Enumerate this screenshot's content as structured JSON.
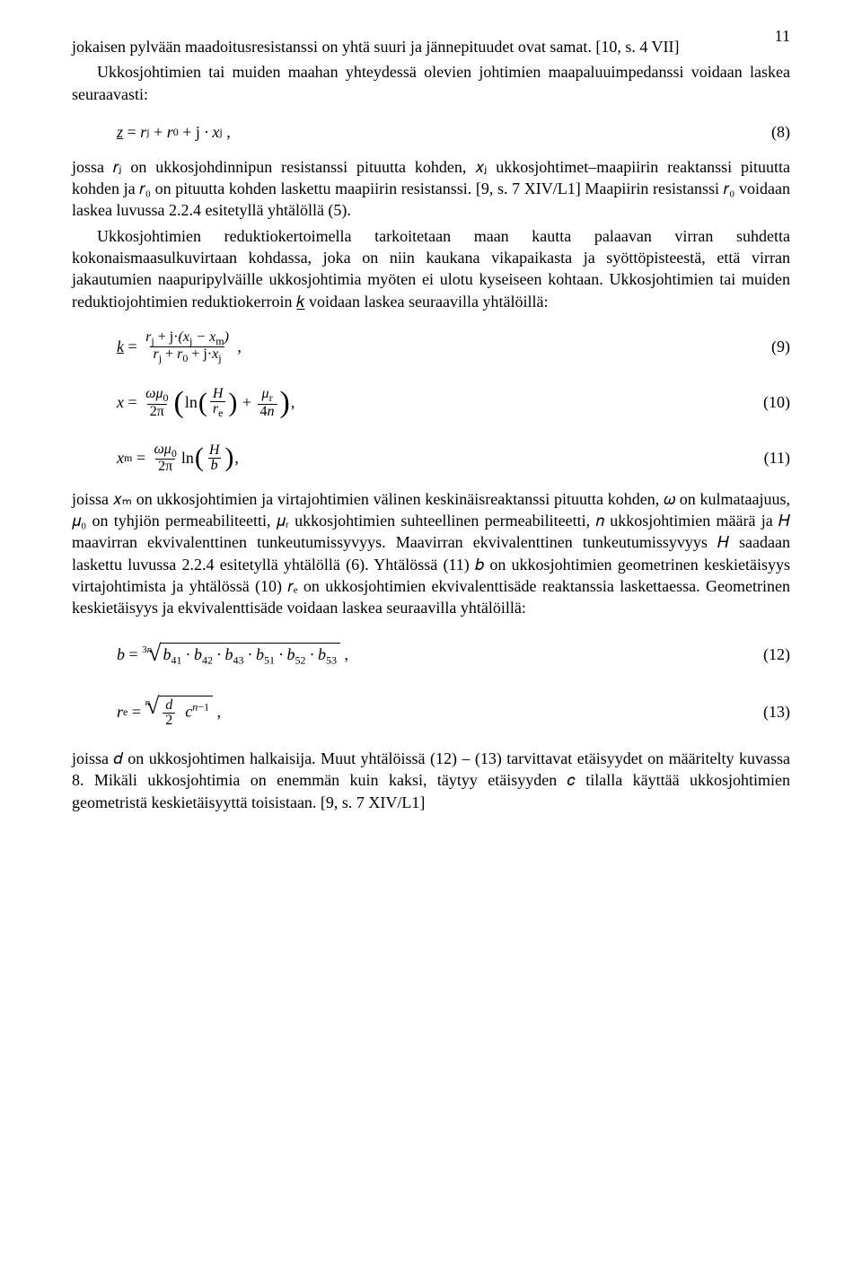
{
  "page_number": "11",
  "p1a": "jokaisen pylvään maadoitusresistanssi on yhtä suuri ja jännepituudet ovat samat. [10, s. 4 VII]",
  "p1b": "Ukkosjohtimien tai muiden maahan yhteydessä olevien johtimien maapaluuimpedanssi voidaan laskea seuraavasti:",
  "eq8_num": "(8)",
  "p2": "jossa 𝑟ⱼ on ukkosjohdinnipun resistanssi pituutta kohden, 𝑥ⱼ ukkosjohtimet–maapiirin reaktanssi pituutta kohden ja 𝑟₀ on pituutta kohden laskettu maapiirin resistanssi. [9, s. 7 XIV/L1] Maapiirin resistanssi 𝑟₀  voidaan laskea luvussa 2.2.4 esitetyllä yhtälöllä (5).",
  "p3": "Ukkosjohtimien reduktiokertoimella tarkoitetaan maan kautta palaavan virran suhdetta kokonaismaasulkuvirtaan kohdassa, joka on niin kaukana vikapaikasta ja syöttöpisteestä, että virran jakautumien naapuripylväille ukkosjohtimia myöten ei ulotu kyseiseen kohtaan. Ukkosjohtimien tai muiden reduktiojohtimien reduktiokerroin 𝑘̲ voidaan laskea seuraavilla yhtälöillä:",
  "eq9_num": "(9)",
  "eq10_num": "(10)",
  "eq11_num": "(11)",
  "p4": "joissa 𝑥ₘ on ukkosjohtimien ja virtajohtimien välinen keskinäisreaktanssi pituutta kohden, 𝜔 on kulmataajuus, 𝜇₀ on tyhjiön permeabiliteetti, 𝜇ᵣ ukkosjohtimien suhteellinen permeabiliteetti, 𝑛 ukkosjohtimien määrä ja 𝐻  maavirran ekvivalenttinen tunkeutumissyvyys. Maavirran ekvivalenttinen tunkeutumissyvyys 𝐻 saadaan laskettu luvussa 2.2.4 esitetyllä yhtälöllä (6).  Yhtälössä (11) 𝑏 on ukkosjohtimien geometrinen keskietäisyys virtajohtimista ja yhtälössä (10)  𝑟ₑ on ukkosjohtimien ekvivalenttisäde reaktanssia laskettaessa. Geometrinen keskietäisyys ja ekvivalenttisäde voidaan laskea seuraavilla yhtälöillä:",
  "eq12_num": "(12)",
  "eq13_num": "(13)",
  "p5": "joissa 𝑑 on ukkosjohtimen halkaisija.  Muut yhtälöissä (12) – (13) tarvittavat etäisyydet on määritelty kuvassa 8. Mikäli ukkosjohtimia on enemmän kuin kaksi, täytyy etäisyyden  𝑐  tilalla  käyttää  ukkosjohtimien  geometristä  keskietäisyyttä  toisistaan. [9, s. 7 XIV/L1]",
  "colors": {
    "text": "#000000",
    "background": "#ffffff"
  }
}
